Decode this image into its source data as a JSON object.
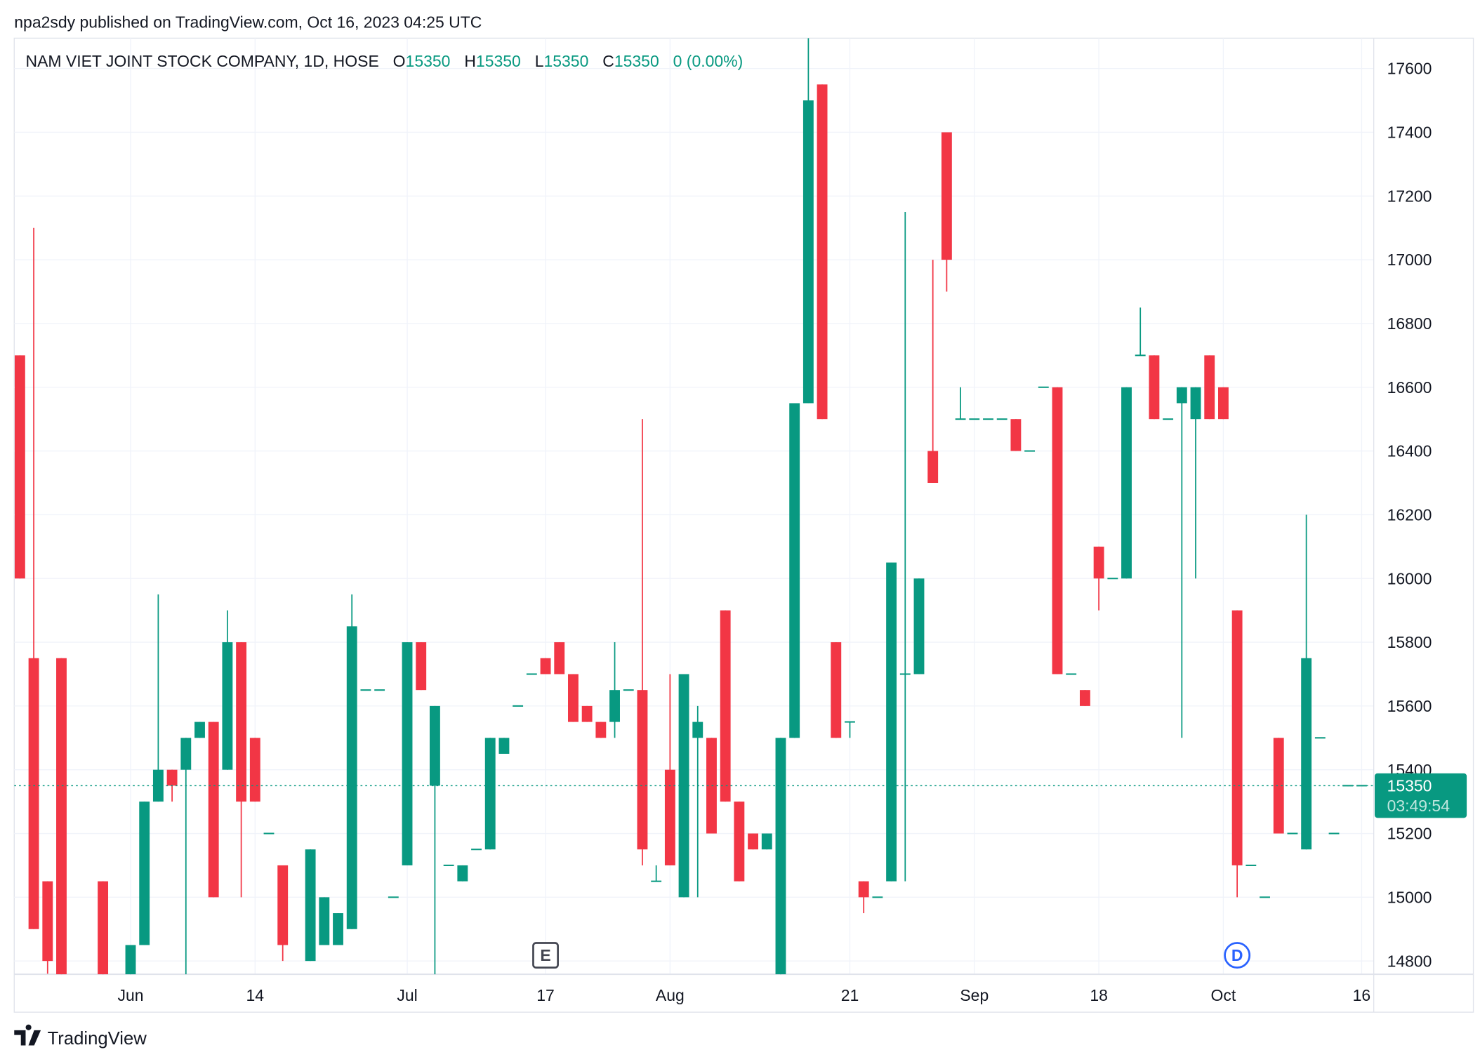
{
  "header": {
    "published": "npa2sdy published on TradingView.com, Oct 16, 2023 04:25 UTC"
  },
  "legend": {
    "symbol": "NAM VIET JOINT STOCK COMPANY, 1D, HOSE",
    "o_label": "O",
    "o": "15350",
    "h_label": "H",
    "h": "15350",
    "l_label": "L",
    "l": "15350",
    "c_label": "C",
    "c": "15350",
    "change": "0 (0.00%)"
  },
  "colors": {
    "up": "#089981",
    "down": "#F23645",
    "grid": "#F0F3FA",
    "text": "#131722",
    "dividend": "#2962FF"
  },
  "price_axis": {
    "ticks": [
      "17600",
      "17400",
      "17200",
      "17000",
      "16800",
      "16600",
      "16400",
      "16200",
      "16000",
      "15800",
      "15600",
      "15400",
      "15200",
      "15000",
      "14800"
    ],
    "range": [
      14760,
      17700
    ]
  },
  "last_price": {
    "value": 15350,
    "label": "15350",
    "countdown": "03:49:54"
  },
  "time_axis": [
    {
      "label": "Jun",
      "bar": 8
    },
    {
      "label": "14",
      "bar": 17
    },
    {
      "label": "Jul",
      "bar": 28
    },
    {
      "label": "17",
      "bar": 38
    },
    {
      "label": "Aug",
      "bar": 47
    },
    {
      "label": "21",
      "bar": 60
    },
    {
      "label": "Sep",
      "bar": 69
    },
    {
      "label": "18",
      "bar": 78
    },
    {
      "label": "Oct",
      "bar": 87
    },
    {
      "label": "16",
      "bar": 97
    }
  ],
  "markers": [
    {
      "label": "E",
      "type": "earnings",
      "bar": 38
    },
    {
      "label": "D",
      "type": "dividend",
      "bar": 88
    }
  ],
  "chart_data": {
    "type": "candlestick",
    "interval": "1D",
    "candles_ohlc": [
      [
        16700,
        16700,
        16000,
        16000
      ],
      [
        15750,
        17100,
        14900,
        14900
      ],
      [
        15050,
        15050,
        14760,
        14800
      ],
      [
        15750,
        15750,
        14700,
        14700
      ],
      null,
      null,
      [
        15050,
        15050,
        14700,
        14700
      ],
      null,
      [
        14700,
        14850,
        14700,
        14850
      ],
      [
        14850,
        15300,
        14850,
        15300
      ],
      [
        15300,
        15950,
        15300,
        15400
      ],
      [
        15400,
        15400,
        15300,
        15350
      ],
      [
        15400,
        15500,
        14700,
        15500
      ],
      [
        15500,
        15550,
        15500,
        15550
      ],
      [
        15550,
        15550,
        15000,
        15000
      ],
      [
        15400,
        15900,
        15400,
        15800
      ],
      [
        15800,
        15800,
        15000,
        15300
      ],
      [
        15500,
        15500,
        15300,
        15300
      ],
      [
        15200,
        15200,
        15200,
        15200
      ],
      [
        15100,
        15100,
        14800,
        14850
      ],
      null,
      [
        14800,
        15150,
        14800,
        15150
      ],
      [
        14850,
        15000,
        14850,
        15000
      ],
      [
        14850,
        14950,
        14850,
        14950
      ],
      [
        14900,
        15950,
        14900,
        15850
      ],
      [
        15650,
        15650,
        15650,
        15650
      ],
      [
        15650,
        15650,
        15650,
        15650
      ],
      [
        15000,
        15000,
        15000,
        15000
      ],
      [
        15100,
        15800,
        15100,
        15800
      ],
      [
        15800,
        15800,
        15650,
        15650
      ],
      [
        15350,
        15600,
        14700,
        15600
      ],
      [
        15100,
        15100,
        15100,
        15100
      ],
      [
        15050,
        15100,
        15050,
        15100
      ],
      [
        15150,
        15150,
        15150,
        15150
      ],
      [
        15150,
        15500,
        15150,
        15500
      ],
      [
        15450,
        15500,
        15450,
        15500
      ],
      [
        15600,
        15600,
        15600,
        15600
      ],
      [
        15700,
        15700,
        15700,
        15700
      ],
      [
        15750,
        15750,
        15700,
        15700
      ],
      [
        15800,
        15800,
        15700,
        15700
      ],
      [
        15700,
        15700,
        15550,
        15550
      ],
      [
        15600,
        15600,
        15550,
        15550
      ],
      [
        15550,
        15550,
        15500,
        15500
      ],
      [
        15550,
        15800,
        15500,
        15650
      ],
      [
        15650,
        15650,
        15650,
        15650
      ],
      [
        15650,
        16500,
        15100,
        15150
      ],
      [
        15050,
        15100,
        15050,
        15050
      ],
      [
        15400,
        15700,
        15100,
        15100
      ],
      [
        15000,
        15700,
        15000,
        15700
      ],
      [
        15500,
        15600,
        15000,
        15550
      ],
      [
        15500,
        15500,
        15200,
        15200
      ],
      [
        15900,
        15900,
        15300,
        15300
      ],
      [
        15300,
        15300,
        15050,
        15050
      ],
      [
        15200,
        15200,
        15150,
        15150
      ],
      [
        15150,
        15200,
        15150,
        15200
      ],
      [
        14700,
        15500,
        14700,
        15500
      ],
      [
        15500,
        16550,
        15500,
        16550
      ],
      [
        16550,
        17700,
        16550,
        17500
      ],
      [
        17550,
        17550,
        16500,
        16500
      ],
      [
        15800,
        15800,
        15500,
        15500
      ],
      [
        15550,
        15550,
        15500,
        15550
      ],
      [
        15050,
        15050,
        14950,
        15000
      ],
      [
        15000,
        15000,
        15000,
        15000
      ],
      [
        15050,
        16050,
        15050,
        16050
      ],
      [
        15700,
        17150,
        15050,
        15700
      ],
      [
        15700,
        16000,
        15700,
        16000
      ],
      [
        16400,
        17000,
        16300,
        16300
      ],
      [
        17400,
        17400,
        16900,
        17000
      ],
      [
        16500,
        16600,
        16500,
        16500
      ],
      [
        16500,
        16500,
        16500,
        16500
      ],
      [
        16500,
        16500,
        16500,
        16500
      ],
      [
        16500,
        16500,
        16500,
        16500
      ],
      [
        16500,
        16500,
        16400,
        16400
      ],
      [
        16400,
        16400,
        16400,
        16400
      ],
      [
        16600,
        16600,
        16600,
        16600
      ],
      [
        16600,
        16600,
        15700,
        15700
      ],
      [
        15700,
        15700,
        15700,
        15700
      ],
      [
        15650,
        15650,
        15600,
        15600
      ],
      [
        16100,
        16100,
        15900,
        16000
      ],
      [
        16000,
        16000,
        16000,
        16000
      ],
      [
        16000,
        16600,
        16000,
        16600
      ],
      [
        16700,
        16850,
        16700,
        16700
      ],
      [
        16700,
        16700,
        16500,
        16500
      ],
      [
        16500,
        16500,
        16500,
        16500
      ],
      [
        16550,
        16600,
        15500,
        16600
      ],
      [
        16500,
        16600,
        16000,
        16600
      ],
      [
        16700,
        16700,
        16500,
        16500
      ],
      [
        16600,
        16600,
        16500,
        16500
      ],
      [
        15900,
        15900,
        15000,
        15100
      ],
      [
        15100,
        15100,
        15100,
        15100
      ],
      [
        15000,
        15000,
        15000,
        15000
      ],
      [
        15500,
        15500,
        15200,
        15200
      ],
      [
        15200,
        15200,
        15200,
        15200
      ],
      [
        15150,
        16200,
        15150,
        15750
      ],
      [
        15500,
        15500,
        15500,
        15500
      ],
      [
        15200,
        15200,
        15200,
        15200
      ],
      [
        15350,
        15350,
        15350,
        15350
      ],
      [
        15350,
        15350,
        15350,
        15350
      ]
    ]
  },
  "footer": {
    "brand": "TradingView"
  }
}
